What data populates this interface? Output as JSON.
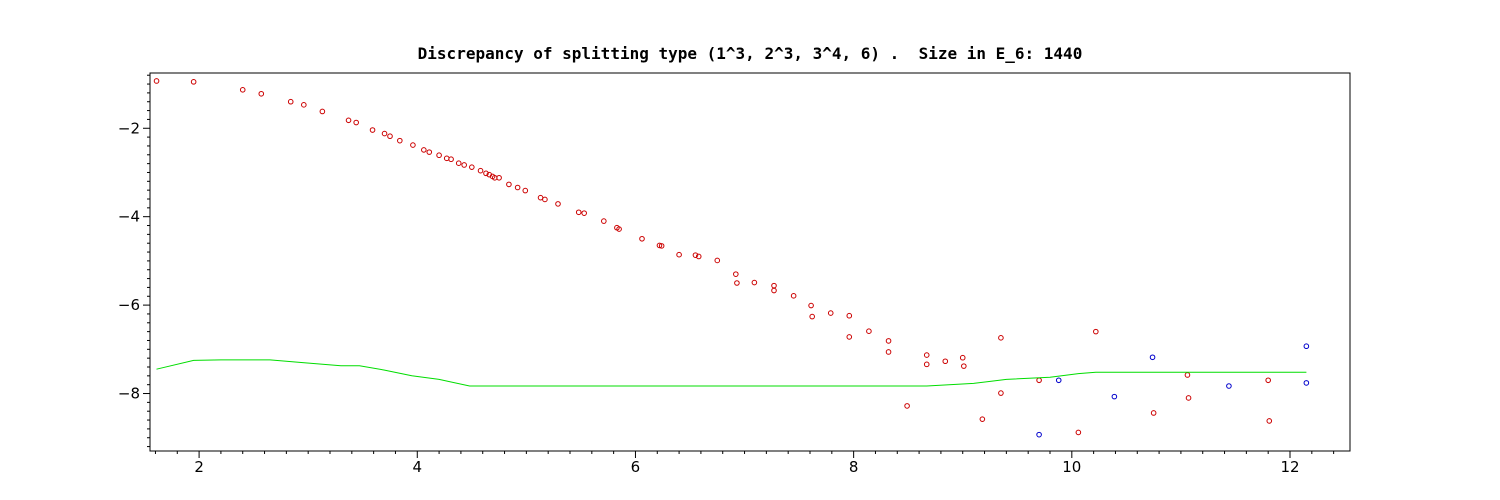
{
  "chart_data": {
    "type": "scatter",
    "title": "Discrepancy of splitting type (1^3, 2^3, 3^4, 6) .  Size in E_6: 1440",
    "xlabel": "",
    "ylabel": "",
    "xlim": [
      1.55,
      12.55
    ],
    "ylim": [
      -9.3,
      -0.75
    ],
    "x_ticks": [
      2,
      4,
      6,
      8,
      10,
      12
    ],
    "y_ticks": [
      -2,
      -4,
      -6,
      -8
    ],
    "grid": false,
    "series": [
      {
        "color": "#cc0000",
        "marker": "circle",
        "points": [
          [
            1.61,
            -0.93
          ],
          [
            1.95,
            -0.95
          ],
          [
            2.4,
            -1.13
          ],
          [
            2.57,
            -1.22
          ],
          [
            2.84,
            -1.4
          ],
          [
            2.96,
            -1.47
          ],
          [
            3.13,
            -1.62
          ],
          [
            3.37,
            -1.82
          ],
          [
            3.44,
            -1.87
          ],
          [
            3.59,
            -2.04
          ],
          [
            3.7,
            -2.12
          ],
          [
            3.75,
            -2.18
          ],
          [
            3.84,
            -2.28
          ],
          [
            3.96,
            -2.38
          ],
          [
            4.06,
            -2.49
          ],
          [
            4.11,
            -2.54
          ],
          [
            4.2,
            -2.61
          ],
          [
            4.27,
            -2.68
          ],
          [
            4.31,
            -2.7
          ],
          [
            4.38,
            -2.79
          ],
          [
            4.43,
            -2.83
          ],
          [
            4.5,
            -2.88
          ],
          [
            4.58,
            -2.96
          ],
          [
            4.63,
            -3.02
          ],
          [
            4.66,
            -3.05
          ],
          [
            4.69,
            -3.09
          ],
          [
            4.71,
            -3.12
          ],
          [
            4.75,
            -3.12
          ],
          [
            4.84,
            -3.27
          ],
          [
            4.92,
            -3.34
          ],
          [
            4.99,
            -3.41
          ],
          [
            5.13,
            -3.57
          ],
          [
            5.17,
            -3.61
          ],
          [
            5.29,
            -3.71
          ],
          [
            5.48,
            -3.9
          ],
          [
            5.53,
            -3.92
          ],
          [
            5.71,
            -4.1
          ],
          [
            5.83,
            -4.25
          ],
          [
            5.85,
            -4.28
          ],
          [
            6.06,
            -4.5
          ],
          [
            6.22,
            -4.65
          ],
          [
            6.24,
            -4.66
          ],
          [
            6.4,
            -4.86
          ],
          [
            6.55,
            -4.87
          ],
          [
            6.58,
            -4.9
          ],
          [
            6.75,
            -4.99
          ],
          [
            6.92,
            -5.3
          ],
          [
            6.93,
            -5.5
          ],
          [
            7.09,
            -5.49
          ],
          [
            7.27,
            -5.56
          ],
          [
            7.27,
            -5.67
          ],
          [
            7.45,
            -5.79
          ],
          [
            7.61,
            -6.01
          ],
          [
            7.62,
            -6.26
          ],
          [
            7.79,
            -6.18
          ],
          [
            7.96,
            -6.24
          ],
          [
            7.96,
            -6.72
          ],
          [
            8.14,
            -6.59
          ],
          [
            8.32,
            -6.81
          ],
          [
            8.32,
            -7.06
          ],
          [
            8.49,
            -8.28
          ],
          [
            8.67,
            -7.13
          ],
          [
            8.67,
            -7.34
          ],
          [
            8.84,
            -7.27
          ],
          [
            9.0,
            -7.19
          ],
          [
            9.01,
            -7.38
          ],
          [
            9.18,
            -8.58
          ],
          [
            9.35,
            -6.74
          ],
          [
            9.35,
            -7.99
          ],
          [
            9.7,
            -7.7
          ],
          [
            10.06,
            -8.88
          ],
          [
            10.22,
            -6.6
          ],
          [
            10.75,
            -8.44
          ],
          [
            11.06,
            -7.58
          ],
          [
            11.07,
            -8.1
          ],
          [
            11.8,
            -7.7
          ],
          [
            11.81,
            -8.62
          ]
        ]
      },
      {
        "color": "#0000cc",
        "marker": "circle",
        "points": [
          [
            9.7,
            -8.93
          ],
          [
            9.88,
            -7.7
          ],
          [
            10.39,
            -8.07
          ],
          [
            10.74,
            -7.18
          ],
          [
            11.44,
            -7.83
          ],
          [
            12.15,
            -6.93
          ],
          [
            12.15,
            -7.76
          ]
        ]
      },
      {
        "color": "#00dd00",
        "marker": "line",
        "points": [
          [
            1.61,
            -7.45
          ],
          [
            1.95,
            -7.25
          ],
          [
            2.2,
            -7.24
          ],
          [
            2.65,
            -7.24
          ],
          [
            2.95,
            -7.3
          ],
          [
            3.3,
            -7.37
          ],
          [
            3.47,
            -7.37
          ],
          [
            3.7,
            -7.47
          ],
          [
            3.95,
            -7.6
          ],
          [
            4.2,
            -7.68
          ],
          [
            4.48,
            -7.83
          ],
          [
            8.67,
            -7.83
          ],
          [
            9.1,
            -7.77
          ],
          [
            9.4,
            -7.68
          ],
          [
            9.8,
            -7.63
          ],
          [
            10.06,
            -7.55
          ],
          [
            10.22,
            -7.52
          ],
          [
            12.15,
            -7.52
          ]
        ]
      }
    ]
  }
}
